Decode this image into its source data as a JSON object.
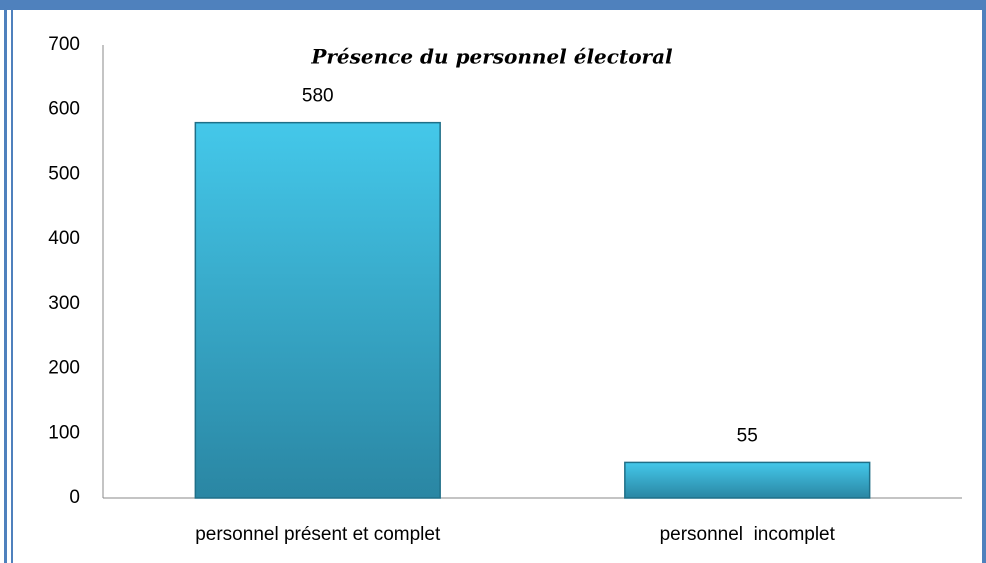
{
  "chart_data": {
    "type": "bar",
    "title": "Présence du personnel électoral",
    "categories": [
      "personnel présent et complet",
      "personnel  incomplet"
    ],
    "values": [
      580,
      55
    ],
    "color": "#3ab4d8",
    "ylim": [
      0,
      700
    ],
    "yticks": [
      0,
      100,
      200,
      300,
      400,
      500,
      600,
      700
    ],
    "grid": false
  }
}
